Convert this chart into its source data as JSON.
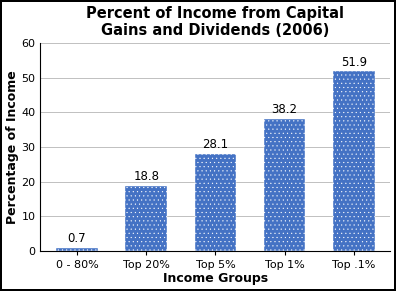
{
  "categories": [
    "0 - 80%",
    "Top 20%",
    "Top 5%",
    "Top 1%",
    "Top .1%"
  ],
  "values": [
    0.7,
    18.8,
    28.1,
    38.2,
    51.9
  ],
  "bar_color": "#4472C4",
  "hatch": "....",
  "title": "Percent of Income from Capital\nGains and Dividends (2006)",
  "xlabel": "Income Groups",
  "ylabel": "Percentage of Income",
  "ylim": [
    0,
    60
  ],
  "yticks": [
    0,
    10,
    20,
    30,
    40,
    50,
    60
  ],
  "title_fontsize": 10.5,
  "label_fontsize": 9,
  "tick_fontsize": 8,
  "bar_value_fontsize": 8.5,
  "background_color": "#ffffff",
  "border_color": "#000000",
  "grid_color": "#c0c0c0"
}
